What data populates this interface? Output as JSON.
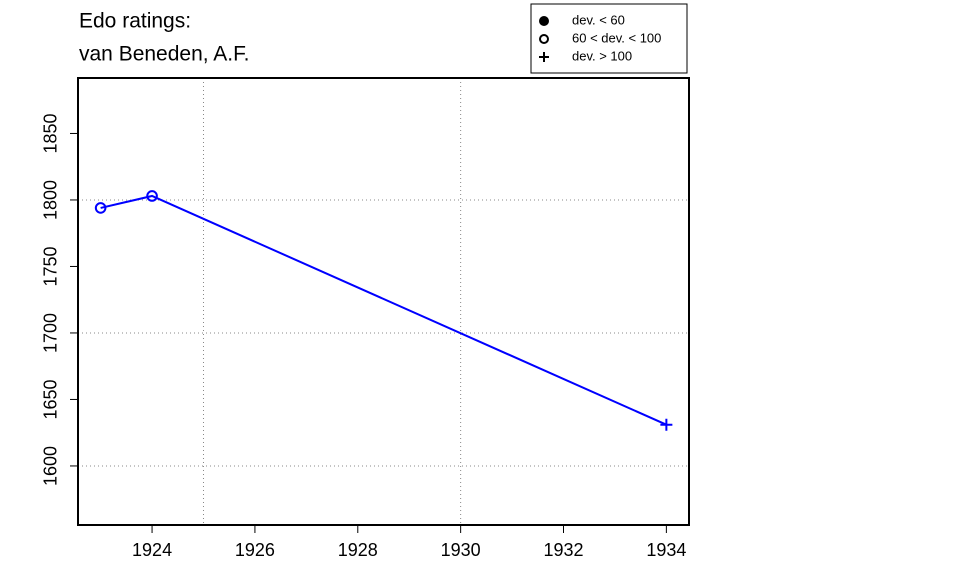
{
  "chart_data": {
    "type": "line",
    "title": [
      "Edo ratings:",
      "van Beneden, A.F."
    ],
    "x": [
      1923,
      1924,
      1934
    ],
    "series": [
      {
        "name": "van Beneden, A.F.",
        "color": "#0000ff",
        "values": [
          1794,
          1803,
          1631
        ],
        "symbols": [
          "open",
          "open",
          "plus"
        ]
      }
    ],
    "xlim": [
      1922.56,
      1934.44
    ],
    "xticks": [
      1924,
      1926,
      1928,
      1930,
      1932,
      1934
    ],
    "ylim": [
      1555.6,
      1891.7
    ],
    "yticks": [
      1600,
      1650,
      1700,
      1750,
      1800,
      1850
    ],
    "xgrid": [
      1925,
      1930
    ],
    "ygrid": [
      1600,
      1700,
      1800
    ],
    "grid": true,
    "legend": {
      "position": "top-right",
      "entries": [
        "dev. < 60",
        "60 < dev. < 100",
        "dev. > 100"
      ],
      "symbols": [
        "solid",
        "open",
        "plus"
      ]
    }
  }
}
